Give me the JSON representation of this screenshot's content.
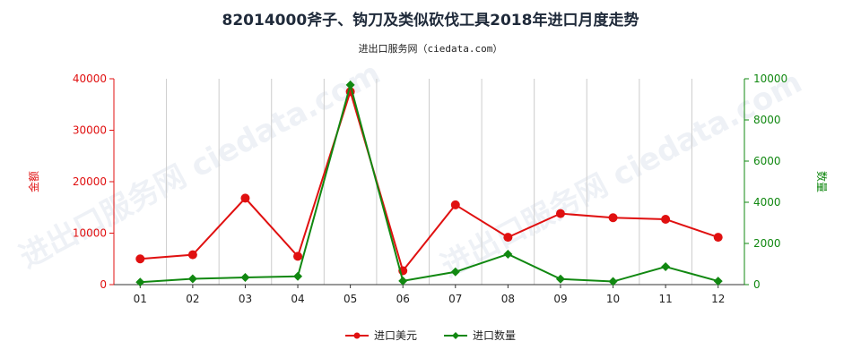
{
  "title": "82014000斧子、钩刀及类似砍伐工具2018年进口月度走势",
  "subtitle": "进出口服务网（ciedata.com）",
  "watermark_text": "进出口服务网 ciedata.com",
  "colors": {
    "amount": "#e01010",
    "quantity": "#118811",
    "grid": "#cccccc",
    "axis": "#333333"
  },
  "chart_data": {
    "type": "line",
    "categories": [
      "01",
      "02",
      "03",
      "04",
      "05",
      "06",
      "07",
      "08",
      "09",
      "10",
      "11",
      "12"
    ],
    "series": [
      {
        "name": "进口美元",
        "axis": "left",
        "values": [
          5000,
          5800,
          16800,
          5500,
          37500,
          2700,
          15500,
          9200,
          13800,
          13000,
          12700,
          9200
        ]
      },
      {
        "name": "进口数量",
        "axis": "right",
        "values": [
          120,
          280,
          350,
          400,
          9700,
          180,
          620,
          1480,
          270,
          150,
          870,
          170
        ]
      }
    ],
    "ylabel_left": "金额",
    "ylabel_right": "数量",
    "ylim_left": [
      0,
      40000
    ],
    "ylim_right": [
      0,
      10000
    ],
    "yticks_left": [
      "0",
      "10000",
      "20000",
      "30000",
      "40000"
    ],
    "yticks_right": [
      "0",
      "2000",
      "4000",
      "6000",
      "8000",
      "10000"
    ],
    "grid": "vertical",
    "legend_position": "bottom-center"
  }
}
